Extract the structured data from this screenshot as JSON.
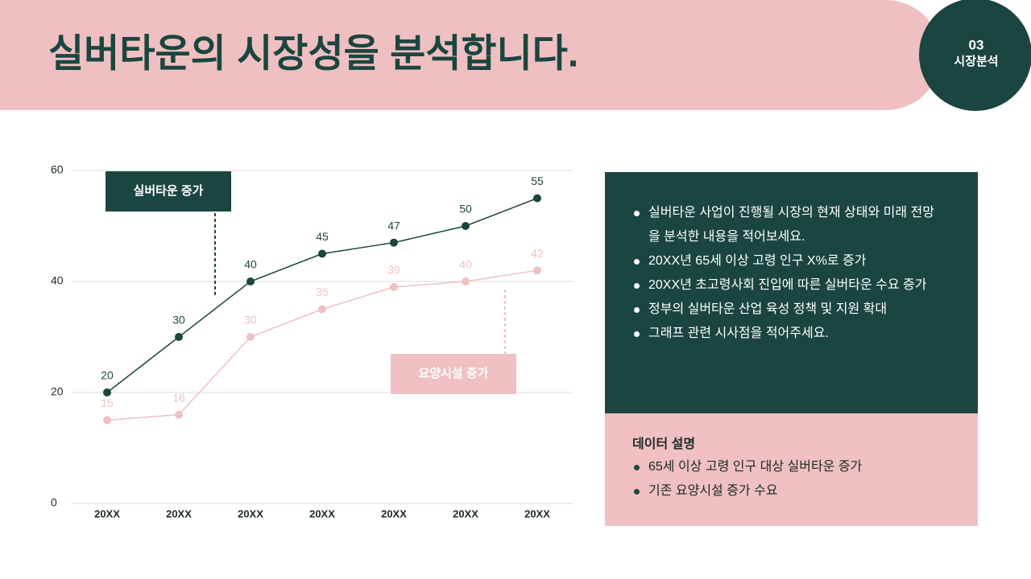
{
  "header": {
    "title": "실버타운의 시장성을 분석합니다.",
    "badge_number": "03",
    "badge_label": "시장분석"
  },
  "chart_data": {
    "type": "line",
    "categories": [
      "20XX",
      "20XX",
      "20XX",
      "20XX",
      "20XX",
      "20XX",
      "20XX"
    ],
    "series": [
      {
        "name": "실버타운 증가",
        "color": "#1b4540",
        "values": [
          20,
          30,
          40,
          45,
          47,
          50,
          55
        ]
      },
      {
        "name": "요양시설 증가",
        "color": "#f0c0c2",
        "values": [
          15,
          16,
          30,
          35,
          39,
          40,
          42
        ]
      }
    ],
    "ylim": [
      0,
      60
    ],
    "yticks": [
      0,
      20,
      40,
      60
    ],
    "grid": true
  },
  "summary_panel": {
    "bullets": [
      "실버타운 사업이 진행될 시장의 현재 상태와 미래 전망을 분석한 내용을 적어보세요.",
      "20XX년 65세 이상 고령 인구 X%로 증가",
      "20XX년 초고령사회 진입에 따른 실버타운 수요 증가",
      "정부의 실버타운 산업 육성 정책 및 지원 확대",
      "그래프 관련 시사점을 적어주세요."
    ]
  },
  "data_description": {
    "title": "데이터 설명",
    "bullets": [
      "65세 이상 고령 인구 대상 실버타운 증가",
      "기존 요양시설 증가 수요"
    ]
  }
}
